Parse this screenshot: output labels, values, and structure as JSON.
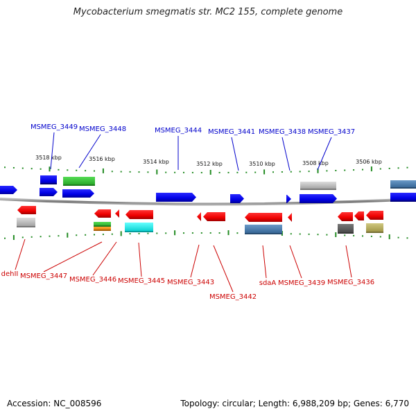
{
  "title": "Mycobacterium smegmatis str. MC2 155, complete genome",
  "accession_text": "Accession: NC_008596",
  "topology_text": "Topology: circular; Length: 6,988,209 bp; Genes: 6,770",
  "colors": {
    "forward_gene": "#0000ee",
    "reverse_gene": "#ee0000",
    "forward_label": "#0000cc",
    "reverse_label": "#cc0000",
    "backbone": "#888888",
    "tick": "#228b22"
  },
  "scale_labels": [
    "3518 kbp",
    "3516 kbp",
    "3514 kbp",
    "3512 kbp",
    "3510 kbp",
    "3508 kbp",
    "3506 kbp"
  ],
  "forward_gene_labels": [
    "MSMEG_3449",
    "MSMEG_3448",
    "MSMEG_3444",
    "MSMEG_3441",
    "MSMEG_3438",
    "MSMEG_3437"
  ],
  "reverse_gene_labels": [
    "dehII",
    "MSMEG_3447",
    "MSMEG_3446",
    "MSMEG_3445",
    "MSMEG_3443",
    "MSMEG_3442",
    "sdaA",
    "MSMEG_3439",
    "MSMEG_3436"
  ]
}
